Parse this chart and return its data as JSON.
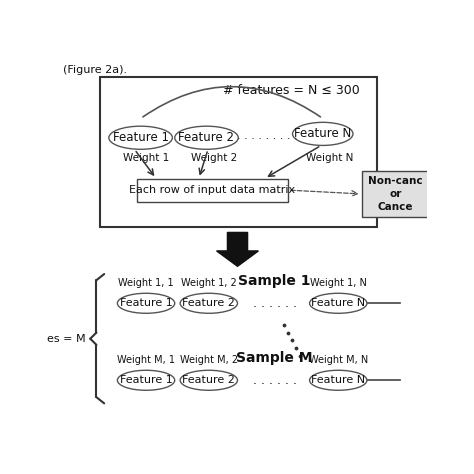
{
  "title_text": "(Figure 2a).",
  "top_label": "# features = N ≤ 300",
  "features_top": [
    "Feature 1",
    "Feature 2",
    "Feature N"
  ],
  "weights_top": [
    "Weight 1",
    "Weight 2",
    "Weight N"
  ],
  "row_box_label": "Each row of input data matrix",
  "output_box_label": "Non-canc\nor\nCance",
  "sample1_label": "Sample 1",
  "sampleM_label": "Sample M",
  "weight_labels_s1": [
    "Weight 1, 1",
    "Weight 1, 2",
    "Weight 1, N"
  ],
  "weight_labels_sM": [
    "Weight M, 1",
    "Weight M, 2",
    "Weight M, N"
  ],
  "features_s1": [
    "Feature 1",
    "Feature 2",
    "Feature N"
  ],
  "features_sM": [
    "Feature 1",
    "Feature 2",
    "Feature N"
  ],
  "samples_brace_label": "es = M",
  "background_color": "#ffffff",
  "ellipse_facecolor": "#ffffff",
  "ellipse_edgecolor": "#555555",
  "text_color": "#111111",
  "outer_rect_color": "#333333",
  "out_box_facecolor": "#e0e0e0"
}
